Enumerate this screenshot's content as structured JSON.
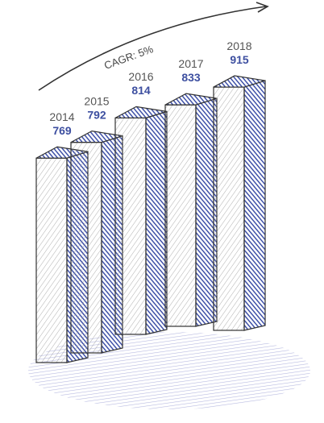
{
  "chart_data": {
    "type": "bar",
    "annotation": "CAGR: 5%",
    "categories": [
      "2014",
      "2015",
      "2016",
      "2017",
      "2018"
    ],
    "values": [
      769,
      792,
      814,
      833,
      915
    ],
    "color": "#3f51a8"
  }
}
